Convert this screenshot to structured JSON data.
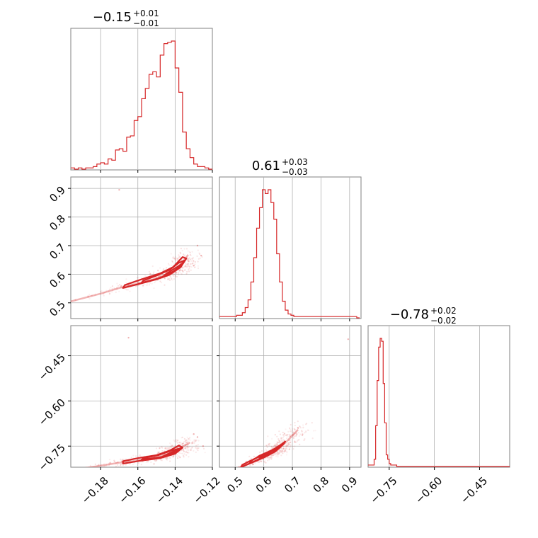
{
  "chart_data": {
    "type": "corner",
    "color": "#d62728",
    "grid": true,
    "params": [
      {
        "id": "p1",
        "title": {
          "main": "−0.15",
          "sup": "+0.01",
          "sub": "−0.01"
        },
        "range": [
          -0.196,
          -0.12
        ],
        "ticks": [
          -0.18,
          -0.16,
          -0.14,
          -0.12
        ],
        "tick_labels": [
          "−0.18",
          "−0.16",
          "−0.14",
          "−0.12"
        ]
      },
      {
        "id": "p2",
        "title": {
          "main": "0.61",
          "sup": "+0.03",
          "sub": "−0.03"
        },
        "range": [
          0.445,
          0.94
        ],
        "ticks": [
          0.5,
          0.6,
          0.7,
          0.8,
          0.9
        ],
        "tick_labels": [
          "0.5",
          "0.6",
          "0.7",
          "0.8",
          "0.9"
        ]
      },
      {
        "id": "p3",
        "title": {
          "main": "−0.78",
          "sup": "+0.02",
          "sub": "−0.02"
        },
        "range": [
          -0.82,
          -0.35
        ],
        "ticks": [
          -0.75,
          -0.6,
          -0.45
        ],
        "tick_labels": [
          "−0.75",
          "−0.60",
          "−0.45"
        ]
      }
    ],
    "histograms": [
      {
        "param": "p1",
        "bin_edges": [
          -0.196,
          -0.194,
          -0.192,
          -0.19,
          -0.188,
          -0.186,
          -0.184,
          -0.182,
          -0.18,
          -0.178,
          -0.176,
          -0.174,
          -0.172,
          -0.17,
          -0.168,
          -0.166,
          -0.164,
          -0.162,
          -0.16,
          -0.158,
          -0.156,
          -0.154,
          -0.152,
          -0.15,
          -0.148,
          -0.146,
          -0.144,
          -0.142,
          -0.14,
          -0.138,
          -0.136,
          -0.134,
          -0.132,
          -0.13,
          -0.128,
          -0.126,
          -0.124,
          -0.122,
          -0.12
        ],
        "counts": [
          1,
          0,
          1,
          0,
          1,
          1,
          2,
          4,
          5,
          4,
          8,
          7,
          15,
          16,
          14,
          25,
          26,
          38,
          41,
          55,
          63,
          74,
          76,
          72,
          89,
          98,
          99,
          100,
          79,
          60,
          29,
          16,
          9,
          4,
          2,
          2,
          1,
          0
        ]
      },
      {
        "param": "p2",
        "bin_edges": [
          0.445,
          0.455,
          0.465,
          0.475,
          0.485,
          0.495,
          0.505,
          0.515,
          0.525,
          0.535,
          0.545,
          0.555,
          0.565,
          0.575,
          0.585,
          0.595,
          0.605,
          0.615,
          0.625,
          0.635,
          0.645,
          0.655,
          0.665,
          0.675,
          0.685,
          0.695,
          0.705,
          0.715,
          0.725,
          0.735,
          0.745,
          0.755,
          0.765,
          0.775,
          0.785,
          0.795,
          0.805,
          0.815,
          0.825,
          0.835,
          0.845,
          0.855,
          0.865,
          0.875,
          0.885,
          0.895,
          0.905,
          0.915,
          0.925,
          0.935
        ],
        "counts": [
          1,
          1,
          1,
          1,
          1,
          1,
          2,
          2,
          4,
          8,
          14,
          28,
          47,
          70,
          86,
          100,
          97,
          100,
          90,
          77,
          50,
          28,
          13,
          6,
          3,
          2,
          1,
          1,
          1,
          1,
          1,
          1,
          1,
          1,
          1,
          1,
          1,
          1,
          1,
          1,
          1,
          1,
          1,
          1,
          1,
          1,
          1,
          1,
          0
        ]
      },
      {
        "param": "p3",
        "bin_edges": [
          -0.82,
          -0.81,
          -0.8,
          -0.795,
          -0.79,
          -0.785,
          -0.78,
          -0.775,
          -0.77,
          -0.765,
          -0.76,
          -0.755,
          -0.75,
          -0.745,
          -0.74,
          -0.735,
          -0.725,
          -0.715,
          -0.35
        ],
        "counts": [
          1,
          1,
          5,
          28,
          59,
          82,
          88,
          86,
          57,
          30,
          8,
          5,
          2,
          1,
          1,
          1,
          0,
          0
        ]
      }
    ],
    "contour_pairs": [
      {
        "x": "p1",
        "y": "p2",
        "ridge": [
          [
            -0.196,
            0.505
          ],
          [
            -0.18,
            0.532
          ],
          [
            -0.17,
            0.552
          ],
          [
            -0.16,
            0.568
          ],
          [
            -0.15,
            0.585
          ],
          [
            -0.145,
            0.598
          ],
          [
            -0.14,
            0.615
          ],
          [
            -0.136,
            0.642
          ],
          [
            -0.133,
            0.668
          ]
        ],
        "levels": [
          {
            "points": [
              [
                -0.168,
                0.552
              ],
              [
                -0.16,
                0.565
              ],
              [
                -0.15,
                0.582
              ],
              [
                -0.143,
                0.598
              ],
              [
                -0.137,
                0.625
              ],
              [
                -0.134,
                0.655
              ],
              [
                -0.136,
                0.66
              ],
              [
                -0.141,
                0.625
              ],
              [
                -0.148,
                0.603
              ],
              [
                -0.158,
                0.582
              ],
              [
                -0.167,
                0.562
              ]
            ]
          },
          {
            "points": [
              [
                -0.158,
                0.57
              ],
              [
                -0.15,
                0.583
              ],
              [
                -0.143,
                0.6
              ],
              [
                -0.137,
                0.628
              ],
              [
                -0.135,
                0.648
              ],
              [
                -0.138,
                0.64
              ],
              [
                -0.143,
                0.615
              ],
              [
                -0.15,
                0.595
              ],
              [
                -0.157,
                0.578
              ]
            ]
          },
          {
            "points": [
              [
                -0.146,
                0.595
              ],
              [
                -0.14,
                0.612
              ],
              [
                -0.136,
                0.638
              ],
              [
                -0.139,
                0.625
              ],
              [
                -0.144,
                0.605
              ]
            ]
          }
        ],
        "outliers": [
          [
            -0.17,
            0.895
          ],
          [
            -0.128,
            0.7
          ],
          [
            -0.126,
            0.665
          ],
          [
            -0.13,
            0.63
          ]
        ]
      },
      {
        "x": "p1",
        "y": "p3",
        "ridge": [
          [
            -0.196,
            -0.83
          ],
          [
            -0.18,
            -0.815
          ],
          [
            -0.17,
            -0.805
          ],
          [
            -0.16,
            -0.798
          ],
          [
            -0.15,
            -0.788
          ],
          [
            -0.145,
            -0.78
          ],
          [
            -0.14,
            -0.768
          ],
          [
            -0.136,
            -0.752
          ],
          [
            -0.132,
            -0.738
          ]
        ],
        "levels": [
          {
            "points": [
              [
                -0.168,
                -0.808
              ],
              [
                -0.158,
                -0.798
              ],
              [
                -0.148,
                -0.79
              ],
              [
                -0.14,
                -0.775
              ],
              [
                -0.136,
                -0.755
              ],
              [
                -0.138,
                -0.748
              ],
              [
                -0.143,
                -0.765
              ],
              [
                -0.15,
                -0.78
              ],
              [
                -0.16,
                -0.79
              ],
              [
                -0.168,
                -0.8
              ]
            ]
          },
          {
            "points": [
              [
                -0.158,
                -0.795
              ],
              [
                -0.148,
                -0.787
              ],
              [
                -0.14,
                -0.772
              ],
              [
                -0.137,
                -0.757
              ],
              [
                -0.142,
                -0.765
              ],
              [
                -0.149,
                -0.78
              ],
              [
                -0.157,
                -0.79
              ]
            ]
          },
          {
            "points": [
              [
                -0.146,
                -0.782
              ],
              [
                -0.14,
                -0.77
              ],
              [
                -0.138,
                -0.76
              ],
              [
                -0.141,
                -0.768
              ]
            ]
          }
        ],
        "outliers": [
          [
            -0.165,
            -0.39
          ],
          [
            -0.128,
            -0.72
          ],
          [
            -0.125,
            -0.75
          ],
          [
            -0.13,
            -0.71
          ]
        ]
      },
      {
        "x": "p2",
        "y": "p3",
        "ridge": [
          [
            0.49,
            -0.83
          ],
          [
            0.53,
            -0.815
          ],
          [
            0.57,
            -0.8
          ],
          [
            0.6,
            -0.787
          ],
          [
            0.63,
            -0.772
          ],
          [
            0.66,
            -0.752
          ],
          [
            0.69,
            -0.725
          ],
          [
            0.72,
            -0.695
          ]
        ],
        "levels": [
          {
            "points": [
              [
                0.52,
                -0.82
              ],
              [
                0.56,
                -0.804
              ],
              [
                0.6,
                -0.788
              ],
              [
                0.64,
                -0.768
              ],
              [
                0.67,
                -0.742
              ],
              [
                0.675,
                -0.735
              ],
              [
                0.665,
                -0.742
              ],
              [
                0.635,
                -0.76
              ],
              [
                0.595,
                -0.78
              ],
              [
                0.555,
                -0.798
              ],
              [
                0.525,
                -0.812
              ]
            ]
          },
          {
            "points": [
              [
                0.55,
                -0.808
              ],
              [
                0.59,
                -0.79
              ],
              [
                0.63,
                -0.772
              ],
              [
                0.655,
                -0.752
              ],
              [
                0.625,
                -0.765
              ],
              [
                0.585,
                -0.782
              ],
              [
                0.555,
                -0.8
              ]
            ]
          },
          {
            "points": [
              [
                0.585,
                -0.79
              ],
              [
                0.615,
                -0.775
              ],
              [
                0.635,
                -0.762
              ],
              [
                0.61,
                -0.772
              ]
            ]
          }
        ],
        "outliers": [
          [
            0.895,
            -0.395
          ],
          [
            0.72,
            -0.69
          ]
        ]
      }
    ]
  }
}
